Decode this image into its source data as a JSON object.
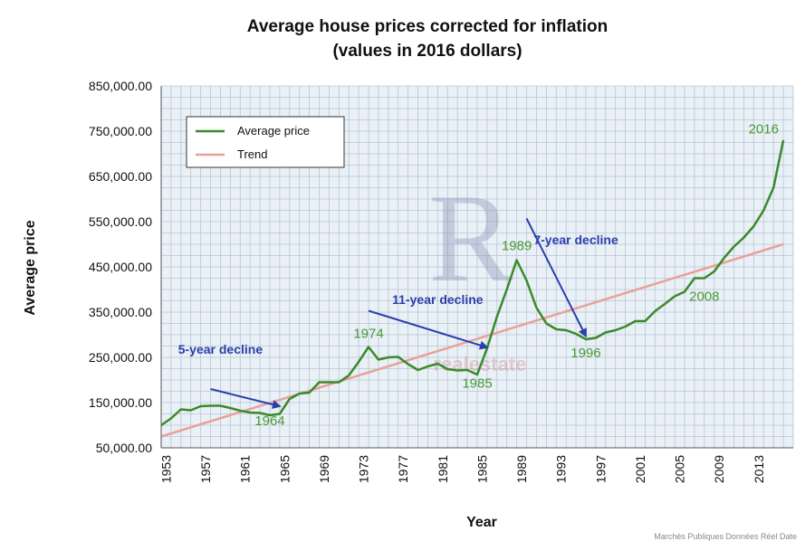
{
  "chart_data": {
    "type": "line",
    "title": "Average house prices corrected for inflation",
    "subtitle": "(values in 2016 dollars)",
    "xlabel": "Year",
    "ylabel": "Average price",
    "xlim": [
      1953,
      2016
    ],
    "ylim": [
      50000,
      850000
    ],
    "y_ticks": [
      50000,
      150000,
      250000,
      350000,
      450000,
      550000,
      650000,
      750000,
      850000
    ],
    "y_tick_labels": [
      "50,000.00",
      "150,000.00",
      "250,000.00",
      "350,000.00",
      "450,000.00",
      "550,000.00",
      "650,000.00",
      "750,000.00",
      "850,000.00"
    ],
    "x_tick_labels": [
      "1953",
      "1957",
      "1961",
      "1965",
      "1969",
      "1973",
      "1977",
      "1981",
      "1985",
      "1989",
      "1993",
      "1997",
      "2001",
      "2005",
      "2009",
      "2013"
    ],
    "grid": true,
    "legend_position": "top-left",
    "series": [
      {
        "name": "Average price",
        "color": "#3a8a2a",
        "x": [
          1953,
          1954,
          1955,
          1956,
          1957,
          1958,
          1959,
          1960,
          1961,
          1962,
          1963,
          1964,
          1965,
          1966,
          1967,
          1968,
          1969,
          1970,
          1971,
          1972,
          1973,
          1974,
          1975,
          1976,
          1977,
          1978,
          1979,
          1980,
          1981,
          1982,
          1983,
          1984,
          1985,
          1986,
          1987,
          1988,
          1989,
          1990,
          1991,
          1992,
          1993,
          1994,
          1995,
          1996,
          1997,
          1998,
          1999,
          2000,
          2001,
          2002,
          2003,
          2004,
          2005,
          2006,
          2007,
          2008,
          2009,
          2010,
          2011,
          2012,
          2013,
          2014,
          2015,
          2016
        ],
        "y": [
          100000,
          115000,
          135000,
          133000,
          142000,
          143000,
          143000,
          138000,
          132000,
          128000,
          127000,
          122000,
          125000,
          158000,
          170000,
          172000,
          195000,
          195000,
          195000,
          210000,
          240000,
          273000,
          245000,
          250000,
          251000,
          235000,
          222000,
          230000,
          236000,
          224000,
          221000,
          222000,
          212000,
          270000,
          340000,
          400000,
          465000,
          420000,
          360000,
          325000,
          312000,
          310000,
          302000,
          290000,
          293000,
          305000,
          310000,
          318000,
          330000,
          330000,
          352000,
          368000,
          385000,
          395000,
          425000,
          425000,
          440000,
          470000,
          495000,
          515000,
          540000,
          575000,
          625000,
          730000
        ]
      },
      {
        "name": "Trend",
        "color": "#e8a29a",
        "x": [
          1953,
          2016
        ],
        "y": [
          75000,
          500000
        ]
      }
    ],
    "annotations": [
      {
        "text": "1964",
        "x": 1964,
        "y": 100000
      },
      {
        "text": "1974",
        "x": 1974,
        "y": 293000
      },
      {
        "text": "1985",
        "x": 1985,
        "y": 183000
      },
      {
        "text": "1989",
        "x": 1989,
        "y": 487000
      },
      {
        "text": "1996",
        "x": 1996,
        "y": 250000
      },
      {
        "text": "2008",
        "x": 2008,
        "y": 375000
      },
      {
        "text": "2016",
        "x": 2014,
        "y": 745000
      }
    ],
    "decline_labels": [
      {
        "text": "5-year decline",
        "x": 1959,
        "y": 258000,
        "arrow_from": [
          1958,
          180000
        ],
        "arrow_to": [
          1965,
          142000
        ]
      },
      {
        "text": "11-year decline",
        "x": 1981,
        "y": 368000,
        "arrow_from": [
          1974,
          353000
        ],
        "arrow_to": [
          1986,
          272000
        ]
      },
      {
        "text": "7-year decline",
        "x": 1995,
        "y": 500000,
        "arrow_from": [
          1990,
          557000
        ],
        "arrow_to": [
          1996,
          297000
        ]
      }
    ]
  },
  "watermark": {
    "logo_text": "R",
    "brand_text": "realestate"
  },
  "footer": {
    "text": "Marchés Publiques Données Réel Date"
  }
}
